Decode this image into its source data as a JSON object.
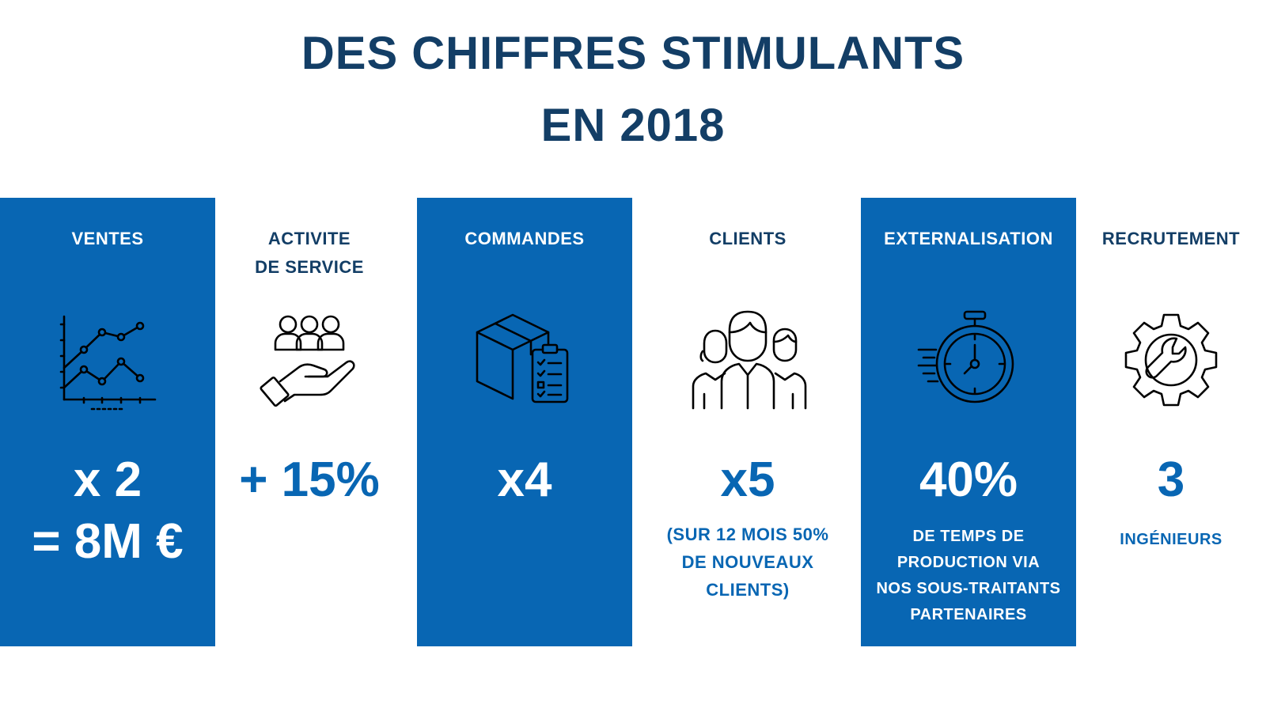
{
  "title": {
    "line1": "DES CHIFFRES STIMULANTS",
    "line2": "EN 2018"
  },
  "colors": {
    "title": "#133e66",
    "panel_blue": "#0866b3",
    "text_on_blue": "#ffffff"
  },
  "columns": [
    {
      "label": "VENTES",
      "icon": "line-chart-icon",
      "value_line1": "x 2",
      "value_line2": "= 8M €",
      "detail": ""
    },
    {
      "label_line1": "ACTIVITE",
      "label_line2": "DE SERVICE",
      "icon": "hand-holding-people-icon",
      "value": "+ 15%",
      "detail": ""
    },
    {
      "label": "COMMANDES",
      "icon": "box-clipboard-icon",
      "value": "x4",
      "detail": ""
    },
    {
      "label": "CLIENTS",
      "icon": "people-group-icon",
      "value": "x5",
      "detail_line1": "(SUR 12 MOIS 50%",
      "detail_line2": "DE NOUVEAUX CLIENTS)"
    },
    {
      "label": "EXTERNALISATION",
      "icon": "stopwatch-icon",
      "value": "40%",
      "detail_line1": "DE TEMPS DE",
      "detail_line2": "PRODUCTION VIA",
      "detail_line3": "NOS SOUS-TRAITANTS",
      "detail_line4": "PARTENAIRES"
    },
    {
      "label": "RECRUTEMENT",
      "icon": "gear-wrench-icon",
      "value": "3",
      "detail": "INGÉNIEURS"
    }
  ]
}
